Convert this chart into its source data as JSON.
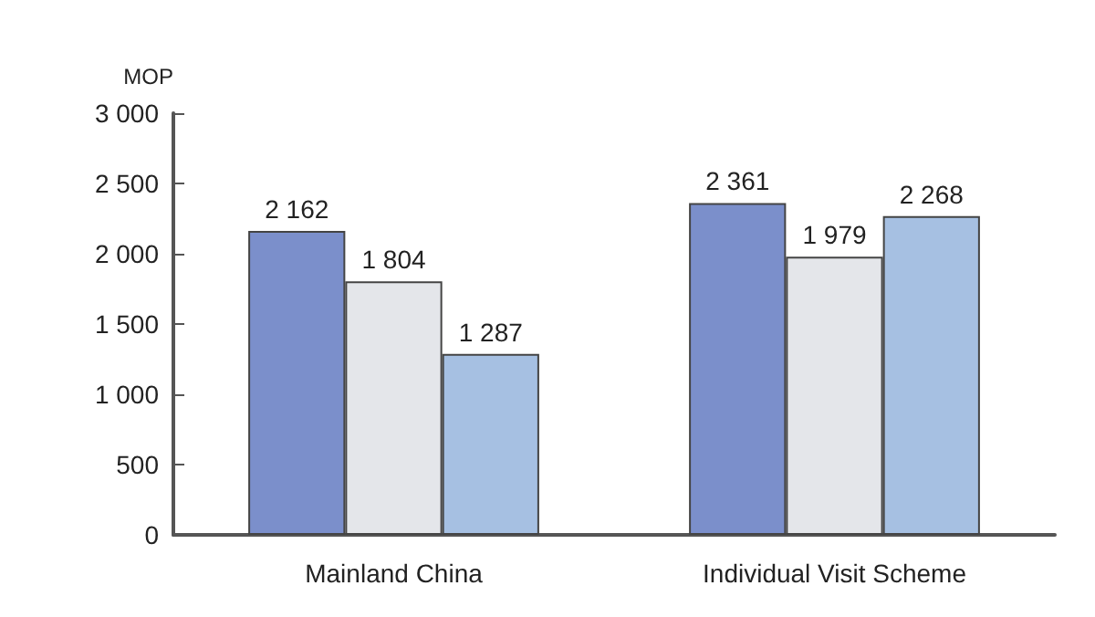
{
  "chart_data": {
    "type": "bar",
    "ylabel": "MOP",
    "categories": [
      "Mainland China",
      "Individual Visit Scheme"
    ],
    "series": [
      {
        "color": "#7b8fcb",
        "values": [
          2162,
          2361
        ],
        "value_labels": [
          "2 162",
          "2 361"
        ]
      },
      {
        "color": "#e4e6ea",
        "values": [
          1804,
          1979
        ],
        "value_labels": [
          "1 804",
          "1 979"
        ]
      },
      {
        "color": "#a6c0e2",
        "values": [
          1287,
          2268
        ],
        "value_labels": [
          "1 287",
          "2 268"
        ]
      }
    ],
    "ylim": [
      0,
      3000
    ],
    "yticks": [
      {
        "value": 0,
        "label": "0"
      },
      {
        "value": 500,
        "label": "500"
      },
      {
        "value": 1000,
        "label": "1 000"
      },
      {
        "value": 1500,
        "label": "1 500"
      },
      {
        "value": 2000,
        "label": "2 000"
      },
      {
        "value": 2500,
        "label": "2 500"
      },
      {
        "value": 3000,
        "label": "3 000"
      }
    ],
    "grid": false
  }
}
